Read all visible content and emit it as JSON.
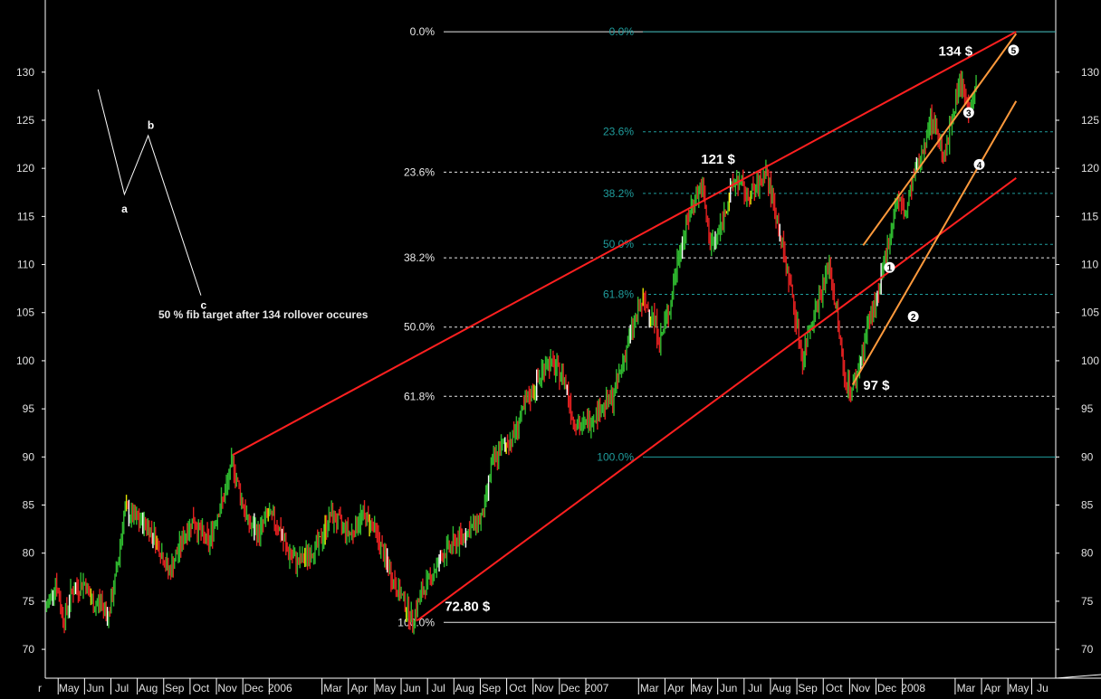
{
  "chart_data": {
    "type": "candlestick",
    "title": "",
    "xlabel": "",
    "ylabel": "",
    "ylim": [
      67,
      137.5
    ],
    "y_ticks": [
      70,
      75,
      80,
      85,
      90,
      95,
      100,
      105,
      110,
      115,
      120,
      125,
      130
    ],
    "x_ticks": [
      "May",
      "Jun",
      "Jul",
      "Aug",
      "Sep",
      "Oct",
      "Nov",
      "Dec",
      "2006",
      "Mar",
      "Apr",
      "May",
      "Jun",
      "Jul",
      "Aug",
      "Sep",
      "Oct",
      "Nov",
      "Dec",
      "2007",
      "Mar",
      "Apr",
      "May",
      "Jun",
      "Jul",
      "Aug",
      "Sep",
      "Oct",
      "Nov",
      "Dec",
      "2008",
      "Mar",
      "Apr",
      "May",
      "Ju"
    ],
    "x_tick_positions": [
      0.9,
      1.9,
      2.9,
      3.9,
      4.9,
      5.9,
      6.9,
      7.9,
      8.9,
      10.9,
      11.9,
      12.9,
      13.9,
      14.9,
      15.9,
      16.9,
      17.9,
      18.9,
      19.9,
      20.9,
      22.9,
      23.9,
      24.9,
      25.9,
      26.9,
      27.9,
      28.9,
      29.9,
      30.9,
      31.9,
      32.9,
      34.9,
      35.9,
      36.9,
      37.8
    ],
    "price_path": [
      [
        0.0,
        74
      ],
      [
        0.4,
        77
      ],
      [
        0.7,
        73
      ],
      [
        1.0,
        76
      ],
      [
        1.5,
        77
      ],
      [
        1.8,
        74.5
      ],
      [
        2.1,
        75
      ],
      [
        2.4,
        73.5
      ],
      [
        2.7,
        78
      ],
      [
        3.0,
        84.5
      ],
      [
        3.4,
        83.5
      ],
      [
        3.8,
        83
      ],
      [
        4.1,
        82
      ],
      [
        4.4,
        80
      ],
      [
        4.7,
        78
      ],
      [
        5.0,
        80
      ],
      [
        5.3,
        82
      ],
      [
        5.6,
        83.5
      ],
      [
        5.9,
        82
      ],
      [
        6.2,
        81
      ],
      [
        6.5,
        84
      ],
      [
        6.8,
        86
      ],
      [
        7.1,
        89.5
      ],
      [
        7.4,
        86
      ],
      [
        7.7,
        83
      ],
      [
        8.1,
        82
      ],
      [
        8.4,
        84
      ],
      [
        8.8,
        83
      ],
      [
        9.2,
        80
      ],
      [
        9.6,
        79
      ],
      [
        10.0,
        80
      ],
      [
        10.4,
        81
      ],
      [
        10.8,
        84
      ],
      [
        11.2,
        83
      ],
      [
        11.6,
        82
      ],
      [
        12.0,
        84
      ],
      [
        12.4,
        83
      ],
      [
        12.8,
        80
      ],
      [
        13.2,
        77
      ],
      [
        13.6,
        75
      ],
      [
        13.9,
        73
      ],
      [
        14.3,
        76
      ],
      [
        14.7,
        78
      ],
      [
        15.1,
        80
      ],
      [
        15.5,
        81
      ],
      [
        15.9,
        82
      ],
      [
        16.3,
        83
      ],
      [
        16.6,
        84
      ],
      [
        16.9,
        89
      ],
      [
        17.3,
        91
      ],
      [
        17.7,
        92
      ],
      [
        18.0,
        94
      ],
      [
        18.3,
        96
      ],
      [
        18.7,
        98
      ],
      [
        19.0,
        100
      ],
      [
        19.4,
        99
      ],
      [
        19.7,
        98
      ],
      [
        20.0,
        94
      ],
      [
        20.3,
        93
      ],
      [
        20.7,
        94
      ],
      [
        21.0,
        95
      ],
      [
        21.5,
        96
      ],
      [
        21.9,
        100
      ],
      [
        22.2,
        103
      ],
      [
        22.6,
        106
      ],
      [
        23.0,
        105
      ],
      [
        23.3,
        102
      ],
      [
        23.7,
        106
      ],
      [
        24.0,
        111
      ],
      [
        24.3,
        114
      ],
      [
        24.6,
        117
      ],
      [
        24.9,
        118
      ],
      [
        25.2,
        112
      ],
      [
        25.5,
        113
      ],
      [
        25.9,
        117
      ],
      [
        26.2,
        119
      ],
      [
        26.6,
        117
      ],
      [
        27.0,
        118
      ],
      [
        27.3,
        120
      ],
      [
        27.7,
        115
      ],
      [
        28.0,
        111
      ],
      [
        28.3,
        107
      ],
      [
        28.7,
        100
      ],
      [
        29.0,
        104
      ],
      [
        29.4,
        107
      ],
      [
        29.7,
        110
      ],
      [
        30.0,
        105
      ],
      [
        30.3,
        98
      ],
      [
        30.6,
        97
      ],
      [
        30.9,
        100
      ],
      [
        31.2,
        104
      ],
      [
        31.6,
        107
      ],
      [
        32.0,
        113
      ],
      [
        32.3,
        117
      ],
      [
        32.6,
        115
      ],
      [
        32.9,
        119
      ],
      [
        33.2,
        121
      ],
      [
        33.5,
        125
      ],
      [
        33.8,
        124
      ],
      [
        34.1,
        121
      ],
      [
        34.4,
        126
      ],
      [
        34.7,
        129
      ],
      [
        35.0,
        126
      ],
      [
        35.3,
        129
      ]
    ],
    "trend_lines": [
      {
        "name": "upper-channel",
        "color": "#ff2020",
        "from": [
          7.1,
          90.2
        ],
        "to": [
          36.8,
          134.2
        ]
      },
      {
        "name": "lower-channel",
        "color": "#ff2020",
        "from": [
          14.1,
          73.0
        ],
        "to": [
          36.8,
          119.0
        ]
      },
      {
        "name": "inner-upper",
        "color": "#ff9a3c",
        "from": [
          31.0,
          112.0
        ],
        "to": [
          36.8,
          134.0
        ]
      },
      {
        "name": "inner-lower",
        "color": "#ff9a3c",
        "from": [
          30.6,
          97.5
        ],
        "to": [
          36.8,
          127.0
        ]
      }
    ],
    "fib_left": {
      "color": "#e8e8e8",
      "levels": [
        {
          "label": "0.0%",
          "value": 134.2
        },
        {
          "label": "23.6%",
          "value": 119.6
        },
        {
          "label": "38.2%",
          "value": 110.7
        },
        {
          "label": "50.0%",
          "value": 103.5
        },
        {
          "label": "61.8%",
          "value": 96.3
        },
        {
          "label": "100.0%",
          "value": 72.8
        }
      ]
    },
    "fib_right": {
      "color": "#1f9c9c",
      "levels": [
        {
          "label": "0.0%",
          "value": 134.2
        },
        {
          "label": "23.6%",
          "value": 123.8
        },
        {
          "label": "38.2%",
          "value": 117.4
        },
        {
          "label": "50.0%",
          "value": 112.1
        },
        {
          "label": "61.8%",
          "value": 106.9
        },
        {
          "label": "100.0%",
          "value": 90.0
        }
      ]
    },
    "price_labels": [
      {
        "text": "134 $",
        "x": 34.5,
        "y": 131.7
      },
      {
        "text": "121 $",
        "x": 25.5,
        "y": 120.5
      },
      {
        "text": "97 $",
        "x": 31.5,
        "y": 97.0
      },
      {
        "text": "72.80 $",
        "x": 16.0,
        "y": 74.0
      }
    ],
    "wave_counts": [
      {
        "label": "1",
        "x": 32.0,
        "y": 109.7
      },
      {
        "label": "2",
        "x": 32.9,
        "y": 104.6
      },
      {
        "label": "3",
        "x": 35.0,
        "y": 125.8
      },
      {
        "label": "4",
        "x": 35.4,
        "y": 120.4
      },
      {
        "label": "5",
        "x": 36.7,
        "y": 132.3
      }
    ],
    "abc_sketch": {
      "points": [
        [
          2.0,
          128.2
        ],
        [
          3.0,
          117.3
        ],
        [
          3.9,
          123.4
        ],
        [
          5.9,
          106.8
        ]
      ],
      "labels": [
        {
          "text": "a",
          "x": 3.0,
          "y": 115.4
        },
        {
          "text": "b",
          "x": 4.0,
          "y": 124.1
        },
        {
          "text": "c",
          "x": 6.0,
          "y": 105.4
        }
      ]
    },
    "annotation": "50 % fib target after 134 rollover occures",
    "colors": {
      "up": "#2fb82f",
      "down": "#e02020",
      "neutral": "#ffffff",
      "highlight": "#e6e600",
      "price_tick": "#e0e0e0"
    }
  }
}
